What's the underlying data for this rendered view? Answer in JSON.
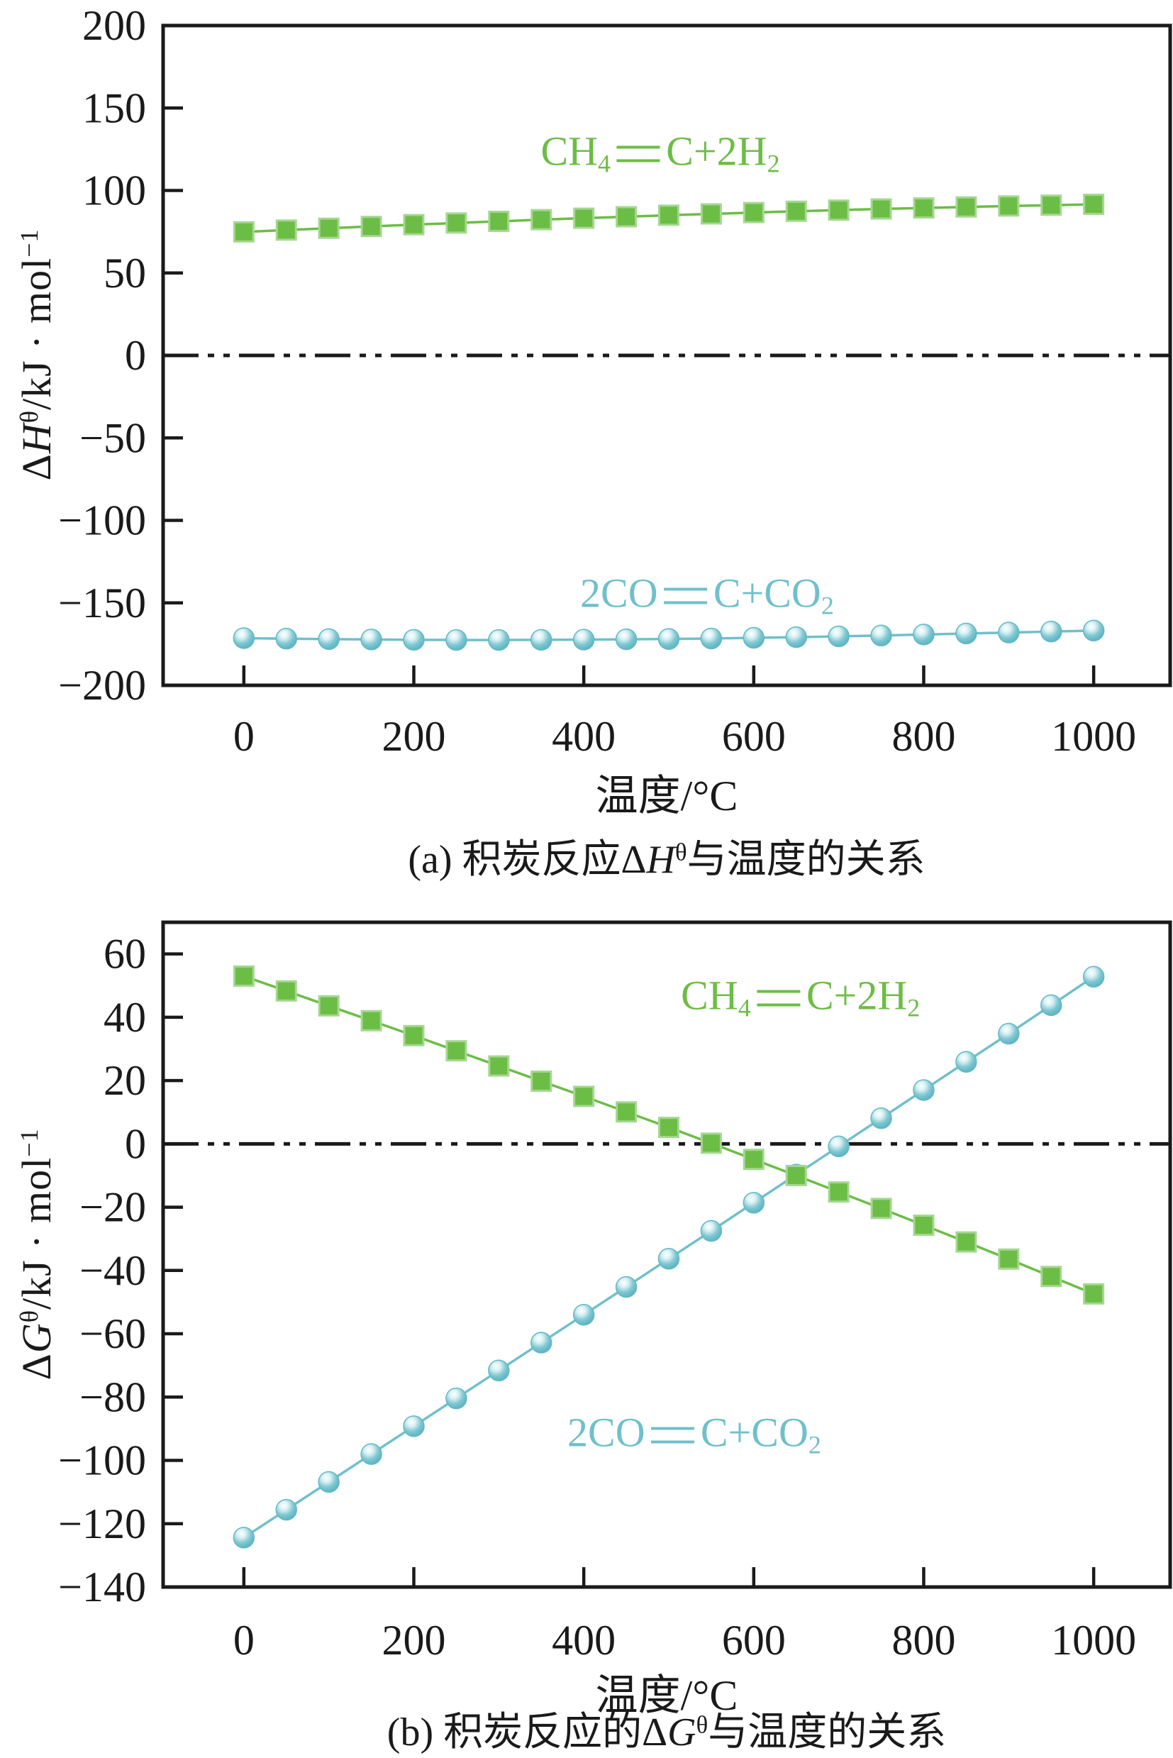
{
  "figure": {
    "background": "#ffffff",
    "axis_color": "#1a1a1a",
    "zero_line_style": "dash-dot-dot"
  },
  "chart_data": [
    {
      "id": "a",
      "type": "line",
      "caption_parts": [
        {
          "t": "(a) 积炭反应Δ"
        },
        {
          "t": "H",
          "italic": true
        },
        {
          "t": "θ",
          "sup": true
        },
        {
          "t": "与温度的关系"
        }
      ],
      "xlabel": "温度/°C",
      "ylabel_parts": [
        {
          "t": "Δ"
        },
        {
          "t": "H",
          "italic": true
        },
        {
          "t": "θ",
          "sup": true
        },
        {
          "t": "/kJ · mol"
        },
        {
          "t": "−1",
          "sup": true
        }
      ],
      "xlim": [
        -95,
        1090
      ],
      "ylim": [
        -200,
        200
      ],
      "xticks": [
        0,
        200,
        400,
        600,
        800,
        1000
      ],
      "yticks": [
        200,
        150,
        100,
        50,
        0,
        -50,
        -100,
        -150,
        -200
      ],
      "zero_line": true,
      "grid": false,
      "legend_position": "inline-labels",
      "x": [
        0,
        50,
        100,
        150,
        200,
        250,
        300,
        350,
        400,
        450,
        500,
        550,
        600,
        650,
        700,
        750,
        800,
        850,
        900,
        950,
        1000
      ],
      "series": [
        {
          "name": "CH4 = C + 2H2",
          "color": "#6cbd45",
          "marker": "square",
          "label_parts": [
            {
              "t": "CH"
            },
            {
              "t": "4",
              "sub": true
            },
            {
              "eq": true
            },
            {
              "t": "C+2H"
            },
            {
              "t": "2",
              "sub": true
            }
          ],
          "label_at": {
            "x": 490,
            "y": 122
          },
          "values": [
            74.9,
            76.0,
            77.1,
            78.2,
            79.3,
            80.3,
            81.3,
            82.3,
            83.2,
            84.1,
            85.0,
            85.8,
            86.6,
            87.4,
            88.1,
            88.8,
            89.4,
            90.0,
            90.6,
            91.1,
            91.6
          ]
        },
        {
          "name": "2CO = C + CO2",
          "color": "#6fc0cb",
          "marker": "sphere",
          "label_parts": [
            {
              "t": "2CO"
            },
            {
              "eq": true
            },
            {
              "t": "C+CO"
            },
            {
              "t": "2",
              "sub": true
            }
          ],
          "label_at": {
            "x": 545,
            "y": -146
          },
          "values": [
            -171.4,
            -171.7,
            -172.0,
            -172.2,
            -172.4,
            -172.5,
            -172.5,
            -172.4,
            -172.3,
            -172.1,
            -171.9,
            -171.6,
            -171.2,
            -170.8,
            -170.3,
            -169.8,
            -169.2,
            -168.6,
            -168.0,
            -167.4,
            -166.8
          ]
        }
      ]
    },
    {
      "id": "b",
      "type": "line",
      "caption_parts": [
        {
          "t": "(b) 积炭反应的Δ"
        },
        {
          "t": "G",
          "italic": true
        },
        {
          "t": "θ",
          "sup": true
        },
        {
          "t": "与温度的关系"
        }
      ],
      "xlabel": "温度/°C",
      "ylabel_parts": [
        {
          "t": "Δ"
        },
        {
          "t": "G",
          "italic": true
        },
        {
          "t": "θ",
          "sup": true
        },
        {
          "t": "/kJ · mol"
        },
        {
          "t": "−1",
          "sup": true
        }
      ],
      "xlim": [
        -95,
        1090
      ],
      "ylim": [
        -140,
        70
      ],
      "xticks": [
        0,
        200,
        400,
        600,
        800,
        1000
      ],
      "yticks": [
        60,
        40,
        20,
        0,
        -20,
        -40,
        -60,
        -80,
        -100,
        -120,
        -140
      ],
      "zero_line": true,
      "grid": false,
      "legend_position": "inline-labels",
      "x": [
        0,
        50,
        100,
        150,
        200,
        250,
        300,
        350,
        400,
        450,
        500,
        550,
        600,
        650,
        700,
        750,
        800,
        850,
        900,
        950,
        1000
      ],
      "series": [
        {
          "name": "2CO = C + CO2",
          "color": "#6fc0cb",
          "marker": "sphere",
          "label_parts": [
            {
              "t": "2CO"
            },
            {
              "eq": true
            },
            {
              "t": "C+CO"
            },
            {
              "t": "2",
              "sub": true
            }
          ],
          "label_at": {
            "x": 530,
            "y": -92
          },
          "values": [
            -124.4,
            -115.6,
            -106.8,
            -98.0,
            -89.2,
            -80.4,
            -71.6,
            -62.8,
            -54.0,
            -45.2,
            -36.3,
            -27.5,
            -18.6,
            -9.7,
            -0.8,
            8.1,
            17.0,
            25.9,
            34.8,
            43.8,
            52.8
          ]
        },
        {
          "name": "CH4 = C + 2H2",
          "color": "#6cbd45",
          "marker": "square",
          "label_parts": [
            {
              "t": "CH"
            },
            {
              "t": "4",
              "sub": true
            },
            {
              "eq": true
            },
            {
              "t": "C+2H"
            },
            {
              "t": "2",
              "sub": true
            }
          ],
          "label_at": {
            "x": 655,
            "y": 46
          },
          "values": [
            53.0,
            48.3,
            43.6,
            38.9,
            34.2,
            29.4,
            24.6,
            19.8,
            15.0,
            10.1,
            5.2,
            0.2,
            -4.9,
            -10.0,
            -15.2,
            -20.4,
            -25.7,
            -31.0,
            -36.4,
            -41.9,
            -47.4
          ]
        }
      ]
    }
  ]
}
